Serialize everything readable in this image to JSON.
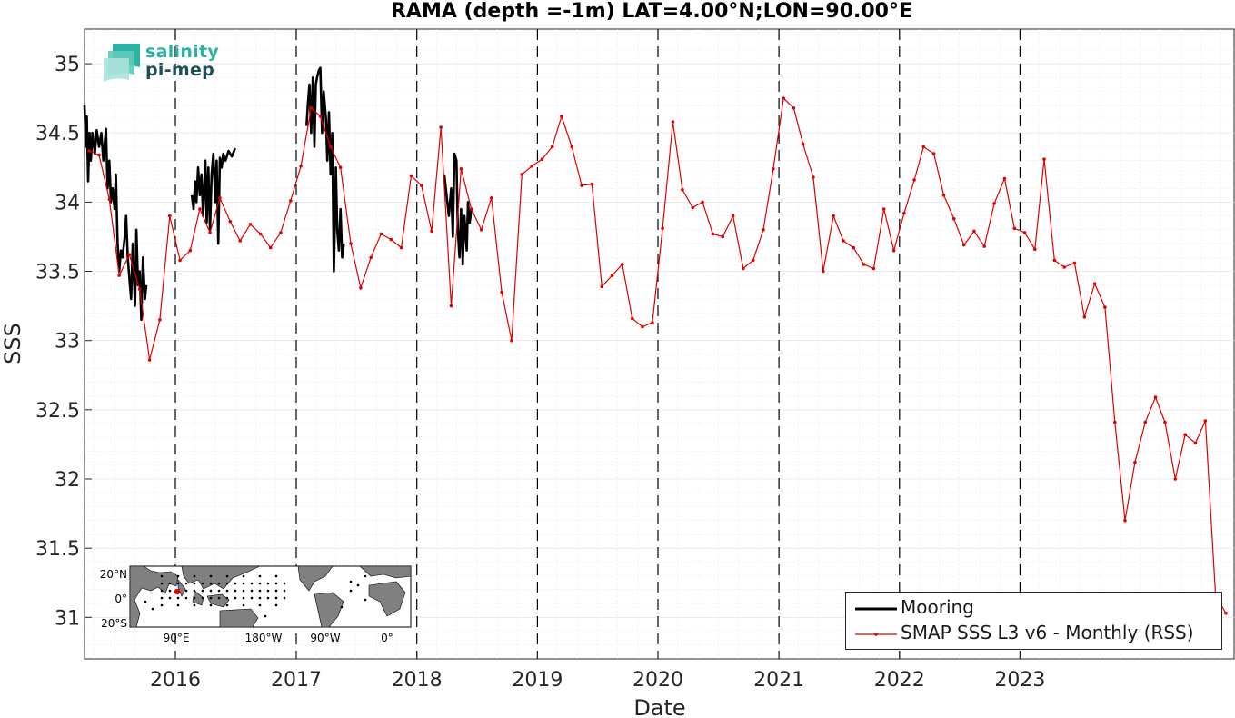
{
  "chart_data": {
    "type": "line",
    "title": "RAMA (depth =-1m) LAT=4.00°N;LON=90.00°E",
    "xlabel": "Date",
    "ylabel": "SSS",
    "xlim": [
      "2015-04-01",
      "2024-10-10"
    ],
    "ylim": [
      30.7,
      35.25
    ],
    "x_ticks": [
      "2016",
      "2017",
      "2018",
      "2019",
      "2020",
      "2021",
      "2022",
      "2023"
    ],
    "y_ticks": [
      "31",
      "31.5",
      "32",
      "32.5",
      "33",
      "33.5",
      "34",
      "34.5",
      "35"
    ],
    "grid": true,
    "vertical_year_lines": true,
    "legend_position": "bottom-right",
    "logo": {
      "line1": "salinity",
      "line2": "pi-mep"
    },
    "series": [
      {
        "name": "Mooring",
        "color": "#000000",
        "segments": [
          [
            [
              "2015-04-01",
              34.7
            ],
            [
              "2015-04-05",
              34.4
            ],
            [
              "2015-04-08",
              34.62
            ],
            [
              "2015-04-12",
              34.15
            ],
            [
              "2015-04-16",
              34.5
            ],
            [
              "2015-04-20",
              34.3
            ],
            [
              "2015-04-25",
              34.5
            ],
            [
              "2015-05-02",
              34.35
            ],
            [
              "2015-05-08",
              34.52
            ],
            [
              "2015-05-15",
              34.4
            ],
            [
              "2015-05-22",
              34.5
            ],
            [
              "2015-05-28",
              34.3
            ],
            [
              "2015-06-05",
              34.53
            ],
            [
              "2015-06-10",
              34.1
            ],
            [
              "2015-06-15",
              34.3
            ],
            [
              "2015-06-20",
              34.0
            ],
            [
              "2015-06-25",
              34.1
            ],
            [
              "2015-07-01",
              33.95
            ],
            [
              "2015-07-05",
              34.2
            ],
            [
              "2015-07-10",
              33.7
            ],
            [
              "2015-07-15",
              33.5
            ],
            [
              "2015-07-20",
              33.65
            ],
            [
              "2015-07-25",
              33.6
            ],
            [
              "2015-08-01",
              33.75
            ],
            [
              "2015-08-05",
              33.9
            ],
            [
              "2015-08-10",
              33.6
            ],
            [
              "2015-08-15",
              33.45
            ],
            [
              "2015-08-20",
              33.3
            ],
            [
              "2015-08-25",
              33.7
            ],
            [
              "2015-09-01",
              33.25
            ],
            [
              "2015-09-05",
              33.8
            ],
            [
              "2015-09-10",
              33.4
            ],
            [
              "2015-09-15",
              33.5
            ],
            [
              "2015-09-20",
              33.15
            ],
            [
              "2015-09-25",
              33.6
            ],
            [
              "2015-10-01",
              33.3
            ],
            [
              "2015-10-05",
              33.4
            ]
          ],
          [
            [
              "2016-02-20",
              34.05
            ],
            [
              "2016-02-25",
              33.95
            ],
            [
              "2016-03-01",
              34.15
            ],
            [
              "2016-03-05",
              34.0
            ],
            [
              "2016-03-10",
              34.25
            ],
            [
              "2016-03-15",
              34.05
            ],
            [
              "2016-03-20",
              34.2
            ],
            [
              "2016-03-25",
              33.9
            ],
            [
              "2016-04-01",
              34.3
            ],
            [
              "2016-04-05",
              33.85
            ],
            [
              "2016-04-10",
              34.25
            ],
            [
              "2016-04-15",
              33.8
            ],
            [
              "2016-04-20",
              34.2
            ],
            [
              "2016-04-25",
              34.35
            ],
            [
              "2016-05-01",
              34.0
            ],
            [
              "2016-05-05",
              34.3
            ],
            [
              "2016-05-10",
              33.7
            ],
            [
              "2016-05-15",
              34.32
            ],
            [
              "2016-05-20",
              34.25
            ],
            [
              "2016-05-25",
              34.35
            ],
            [
              "2016-06-01",
              34.3
            ],
            [
              "2016-06-10",
              34.37
            ],
            [
              "2016-06-20",
              34.33
            ],
            [
              "2016-06-30",
              34.39
            ]
          ],
          [
            [
              "2017-02-01",
              34.55
            ],
            [
              "2017-02-05",
              34.7
            ],
            [
              "2017-02-10",
              34.85
            ],
            [
              "2017-02-15",
              34.5
            ],
            [
              "2017-02-20",
              34.9
            ],
            [
              "2017-02-25",
              34.4
            ],
            [
              "2017-03-01",
              34.85
            ],
            [
              "2017-03-05",
              34.9
            ],
            [
              "2017-03-10",
              34.95
            ],
            [
              "2017-03-15",
              34.97
            ],
            [
              "2017-03-20",
              34.5
            ],
            [
              "2017-03-25",
              34.8
            ],
            [
              "2017-04-01",
              34.6
            ],
            [
              "2017-04-05",
              34.3
            ],
            [
              "2017-04-10",
              34.65
            ],
            [
              "2017-04-15",
              34.2
            ],
            [
              "2017-04-20",
              34.5
            ],
            [
              "2017-04-25",
              33.5
            ],
            [
              "2017-05-01",
              34.25
            ],
            [
              "2017-05-05",
              33.8
            ],
            [
              "2017-05-10",
              33.65
            ],
            [
              "2017-05-15",
              33.95
            ],
            [
              "2017-05-20",
              33.6
            ],
            [
              "2017-05-25",
              33.7
            ]
          ],
          [
            [
              "2018-03-25",
              34.2
            ],
            [
              "2018-04-01",
              34.05
            ],
            [
              "2018-04-08",
              33.9
            ],
            [
              "2018-04-15",
              34.1
            ],
            [
              "2018-04-20",
              33.75
            ],
            [
              "2018-04-25",
              34.35
            ],
            [
              "2018-05-01",
              34.3
            ],
            [
              "2018-05-05",
              33.8
            ],
            [
              "2018-05-10",
              33.6
            ],
            [
              "2018-05-15",
              33.95
            ],
            [
              "2018-05-20",
              33.55
            ],
            [
              "2018-05-25",
              33.9
            ],
            [
              "2018-06-01",
              33.65
            ],
            [
              "2018-06-05",
              34.0
            ],
            [
              "2018-06-10",
              33.85
            ],
            [
              "2018-06-15",
              33.95
            ]
          ]
        ]
      },
      {
        "name": "SMAP SSS L3 v6 - Monthly (RSS)",
        "color": "#e00000",
        "points": [
          [
            "2015-04-15",
            34.37
          ],
          [
            "2015-05-15",
            34.34
          ],
          [
            "2015-06-15",
            34.02
          ],
          [
            "2015-07-15",
            33.47
          ],
          [
            "2015-08-15",
            33.62
          ],
          [
            "2015-09-15",
            33.37
          ],
          [
            "2015-10-15",
            32.86
          ],
          [
            "2015-11-15",
            33.15
          ],
          [
            "2015-12-15",
            33.9
          ],
          [
            "2016-01-15",
            33.58
          ],
          [
            "2016-02-15",
            33.65
          ],
          [
            "2016-03-15",
            33.95
          ],
          [
            "2016-04-15",
            33.78
          ],
          [
            "2016-05-15",
            34.03
          ],
          [
            "2016-06-15",
            33.86
          ],
          [
            "2016-07-15",
            33.72
          ],
          [
            "2016-08-15",
            33.84
          ],
          [
            "2016-09-15",
            33.77
          ],
          [
            "2016-10-15",
            33.67
          ],
          [
            "2016-11-15",
            33.78
          ],
          [
            "2016-12-15",
            34.01
          ],
          [
            "2017-01-15",
            34.26
          ],
          [
            "2017-02-15",
            34.68
          ],
          [
            "2017-03-15",
            34.62
          ],
          [
            "2017-04-15",
            34.4
          ],
          [
            "2017-05-15",
            34.25
          ],
          [
            "2017-06-15",
            33.7
          ],
          [
            "2017-07-15",
            33.38
          ],
          [
            "2017-08-15",
            33.6
          ],
          [
            "2017-09-15",
            33.77
          ],
          [
            "2017-10-15",
            33.73
          ],
          [
            "2017-11-15",
            33.67
          ],
          [
            "2017-12-15",
            34.19
          ],
          [
            "2018-01-15",
            34.12
          ],
          [
            "2018-02-15",
            33.79
          ],
          [
            "2018-03-15",
            34.54
          ],
          [
            "2018-04-15",
            33.25
          ],
          [
            "2018-05-15",
            34.24
          ],
          [
            "2018-06-15",
            33.95
          ],
          [
            "2018-07-15",
            33.8
          ],
          [
            "2018-08-15",
            34.03
          ],
          [
            "2018-09-15",
            33.35
          ],
          [
            "2018-10-15",
            33.0
          ],
          [
            "2018-11-15",
            34.2
          ],
          [
            "2018-12-15",
            34.26
          ],
          [
            "2019-01-15",
            34.31
          ],
          [
            "2019-02-15",
            34.4
          ],
          [
            "2019-03-15",
            34.62
          ],
          [
            "2019-04-15",
            34.4
          ],
          [
            "2019-05-15",
            34.12
          ],
          [
            "2019-06-15",
            34.13
          ],
          [
            "2019-07-15",
            33.39
          ],
          [
            "2019-08-15",
            33.47
          ],
          [
            "2019-09-15",
            33.55
          ],
          [
            "2019-10-15",
            33.16
          ],
          [
            "2019-11-15",
            33.1
          ],
          [
            "2019-12-15",
            33.13
          ],
          [
            "2020-01-15",
            33.81
          ],
          [
            "2020-02-15",
            34.58
          ],
          [
            "2020-03-15",
            34.09
          ],
          [
            "2020-04-15",
            33.96
          ],
          [
            "2020-05-15",
            34.0
          ],
          [
            "2020-06-15",
            33.77
          ],
          [
            "2020-07-15",
            33.75
          ],
          [
            "2020-08-15",
            33.9
          ],
          [
            "2020-09-15",
            33.52
          ],
          [
            "2020-10-15",
            33.58
          ],
          [
            "2020-11-15",
            33.8
          ],
          [
            "2020-12-15",
            34.24
          ],
          [
            "2021-01-15",
            34.75
          ],
          [
            "2021-02-15",
            34.68
          ],
          [
            "2021-03-15",
            34.42
          ],
          [
            "2021-04-15",
            34.18
          ],
          [
            "2021-05-15",
            33.5
          ],
          [
            "2021-06-15",
            33.9
          ],
          [
            "2021-07-15",
            33.72
          ],
          [
            "2021-08-15",
            33.67
          ],
          [
            "2021-09-15",
            33.55
          ],
          [
            "2021-10-15",
            33.52
          ],
          [
            "2021-11-15",
            33.95
          ],
          [
            "2021-12-15",
            33.65
          ],
          [
            "2022-01-15",
            33.92
          ],
          [
            "2022-02-15",
            34.16
          ],
          [
            "2022-03-15",
            34.4
          ],
          [
            "2022-04-15",
            34.35
          ],
          [
            "2022-05-15",
            34.05
          ],
          [
            "2022-06-15",
            33.88
          ],
          [
            "2022-07-15",
            33.69
          ],
          [
            "2022-08-15",
            33.79
          ],
          [
            "2022-09-15",
            33.68
          ],
          [
            "2022-10-15",
            33.99
          ],
          [
            "2022-11-15",
            34.17
          ],
          [
            "2022-12-15",
            33.81
          ],
          [
            "2023-01-15",
            33.78
          ],
          [
            "2023-02-15",
            33.66
          ],
          [
            "2023-03-15",
            34.31
          ],
          [
            "2023-04-15",
            33.58
          ],
          [
            "2023-05-15",
            33.53
          ],
          [
            "2023-06-15",
            33.56
          ],
          [
            "2023-07-15",
            33.17
          ],
          [
            "2023-08-15",
            33.41
          ],
          [
            "2023-09-15",
            33.24
          ],
          [
            "2023-10-15",
            32.41
          ],
          [
            "2023-11-15",
            31.7
          ],
          [
            "2023-12-15",
            32.12
          ],
          [
            "2024-01-15",
            32.41
          ],
          [
            "2024-02-15",
            32.59
          ],
          [
            "2024-03-15",
            32.41
          ],
          [
            "2024-04-15",
            32.0
          ],
          [
            "2024-05-15",
            32.32
          ],
          [
            "2024-06-15",
            32.26
          ],
          [
            "2024-07-15",
            32.42
          ],
          [
            "2024-08-15",
            31.16
          ],
          [
            "2024-09-15",
            31.03
          ]
        ]
      }
    ],
    "inset_map": {
      "lat_ticks": [
        "20$N",
        "0$",
        "20$S"
      ],
      "lon_ticks": [
        "90$E",
        "180$W",
        "90$W",
        "0$"
      ],
      "marker_color": "#e00000"
    }
  }
}
